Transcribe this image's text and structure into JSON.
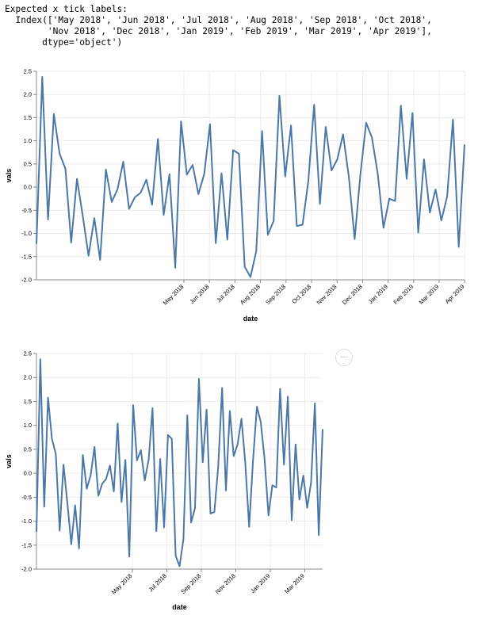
{
  "output": {
    "lines": [
      "Expected x tick labels:",
      "  Index(['May 2018', 'Jun 2018', 'Jul 2018', 'Aug 2018', 'Sep 2018', 'Oct 2018',",
      "        'Nov 2018', 'Dec 2018', 'Jan 2019', 'Feb 2019', 'Mar 2019', 'Apr 2019'],",
      "       dtype='object')"
    ]
  },
  "menu_button": {
    "icon": "ellipsis-icon",
    "glyph": "..."
  },
  "chart_data": [
    {
      "type": "line",
      "xlabel": "date",
      "ylabel": "vals",
      "ylim": [
        -2.0,
        2.5
      ],
      "y_ticks": [
        "-2.0",
        "-1.5",
        "-1.0",
        "-0.5",
        "0.0",
        "0.5",
        "1.0",
        "1.5",
        "2.0",
        "2.5"
      ],
      "x_ticks": [
        "May 2018",
        "Jun 2018",
        "Jul 2018",
        "Aug 2018",
        "Sep 2018",
        "Oct 2018",
        "Nov 2018",
        "Dec 2018",
        "Jan 2019",
        "Feb 2019",
        "Mar 2019",
        "Apr 2019"
      ],
      "color": "#4c78a8",
      "grid": true,
      "series": [
        {
          "values": [
            -1.22,
            2.38,
            -0.7,
            1.58,
            0.72,
            0.4,
            -1.2,
            0.18,
            -0.62,
            -1.48,
            -0.67,
            -1.57,
            0.38,
            -0.32,
            -0.05,
            0.55,
            -0.47,
            -0.22,
            -0.12,
            0.16,
            -0.38,
            1.04,
            -0.6,
            0.28,
            -1.74,
            1.42,
            0.27,
            0.48,
            -0.15,
            0.28,
            1.36,
            -1.21,
            0.3,
            -1.13,
            0.8,
            0.72,
            -1.72,
            -1.94,
            -1.38,
            1.21,
            -1.03,
            -0.73,
            1.97,
            0.23,
            1.33,
            -0.84,
            -0.81,
            0.14,
            1.78,
            -0.36,
            1.3,
            0.36,
            0.6,
            1.14,
            0.22,
            -1.12,
            0.27,
            1.39,
            1.07,
            0.29,
            -0.88,
            -0.25,
            -0.3,
            1.76,
            0.18,
            1.6,
            -0.98,
            0.6,
            -0.55,
            -0.05,
            -0.72,
            -0.2,
            1.46,
            -1.29,
            0.92
          ]
        }
      ]
    },
    {
      "type": "line",
      "xlabel": "date",
      "ylabel": "vals",
      "ylim": [
        -2.0,
        2.5
      ],
      "y_ticks": [
        "-2.0",
        "-1.5",
        "-1.0",
        "-0.5",
        "0.0",
        "0.5",
        "1.0",
        "1.5",
        "2.0",
        "2.5"
      ],
      "x_ticks": [
        "May 2018",
        "Jul 2018",
        "Sep 2018",
        "Nov 2018",
        "Jan 2019",
        "Mar 2019"
      ],
      "color": "#4c78a8",
      "grid": true,
      "series": [
        {
          "values": [
            -1.22,
            2.38,
            -0.7,
            1.58,
            0.72,
            0.4,
            -1.2,
            0.18,
            -0.62,
            -1.48,
            -0.67,
            -1.57,
            0.38,
            -0.32,
            -0.05,
            0.55,
            -0.47,
            -0.22,
            -0.12,
            0.16,
            -0.38,
            1.04,
            -0.6,
            0.28,
            -1.74,
            1.42,
            0.27,
            0.48,
            -0.15,
            0.28,
            1.36,
            -1.21,
            0.3,
            -1.13,
            0.8,
            0.72,
            -1.72,
            -1.94,
            -1.38,
            1.21,
            -1.03,
            -0.73,
            1.97,
            0.23,
            1.33,
            -0.84,
            -0.81,
            0.14,
            1.78,
            -0.36,
            1.3,
            0.36,
            0.6,
            1.14,
            0.22,
            -1.12,
            0.27,
            1.39,
            1.07,
            0.29,
            -0.88,
            -0.25,
            -0.3,
            1.76,
            0.18,
            1.6,
            -0.98,
            0.6,
            -0.55,
            -0.05,
            -0.72,
            -0.2,
            1.46,
            -1.29,
            0.92
          ]
        }
      ]
    }
  ]
}
